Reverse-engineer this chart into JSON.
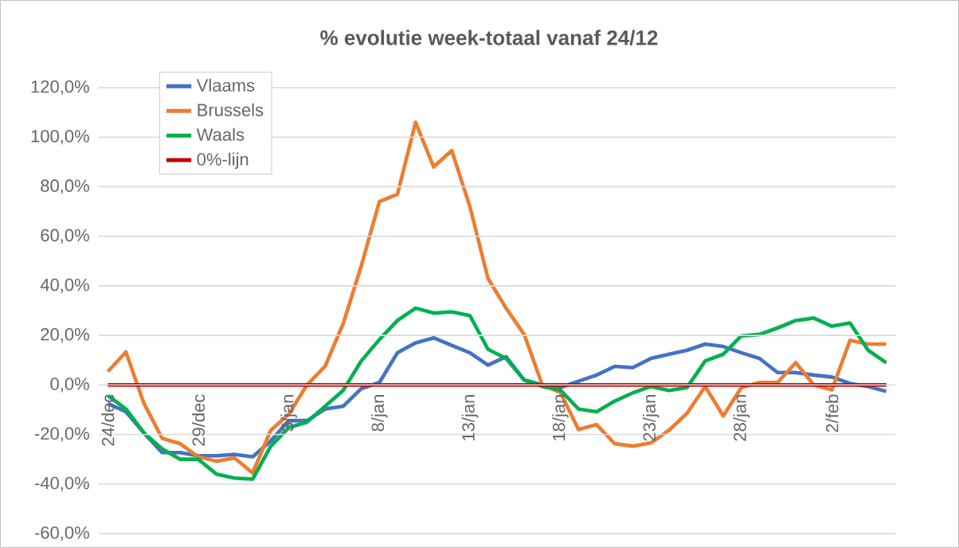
{
  "chart_data": {
    "type": "line",
    "title": "% evolutie week-totaal  vanaf 24/12",
    "categories": [
      "24/dec",
      null,
      null,
      null,
      null,
      "29/dec",
      null,
      null,
      null,
      null,
      "3/jan",
      null,
      null,
      null,
      null,
      "8/jan",
      null,
      null,
      null,
      null,
      "13/jan",
      null,
      null,
      null,
      null,
      "18/jan",
      null,
      null,
      null,
      null,
      "23/jan",
      null,
      null,
      null,
      null,
      "28/jan",
      null,
      null,
      null,
      null,
      "2/feb",
      null,
      null,
      null
    ],
    "series": [
      {
        "name": "Vlaams",
        "color": "#4472c4",
        "values": [
          -7.5,
          -10.8,
          -19.4,
          -27.3,
          -27.3,
          -28.6,
          -28.6,
          -28,
          -29,
          -22.6,
          -14.4,
          -14.4,
          -9.7,
          -8.6,
          -1.5,
          1,
          13,
          17,
          19,
          16,
          13,
          8,
          11.4,
          2,
          0,
          -1,
          1.5,
          4,
          7.5,
          7,
          10.7,
          12.4,
          14,
          16.5,
          15.5,
          13,
          10.7,
          5,
          5,
          4,
          3.2,
          0.6,
          -0.6,
          -2.6
        ]
      },
      {
        "name": "Brussels",
        "color": "#ed7d31",
        "values": [
          5.4,
          13.3,
          -7.5,
          -21.5,
          -23.7,
          -29,
          -30.8,
          -29.5,
          -35.5,
          -18.3,
          -11.8,
          0,
          7.5,
          24.7,
          48,
          74,
          77,
          106,
          88,
          94.6,
          72,
          43,
          31,
          20.4,
          0,
          -3,
          -18,
          -16,
          -23.7,
          -24.7,
          -23.4,
          -18.3,
          -11.4,
          -0.6,
          -12.5,
          -1,
          1,
          1,
          9,
          0,
          -2,
          18,
          16.5,
          16.5
        ]
      },
      {
        "name": "Waals",
        "color": "#00b050",
        "values": [
          -4.3,
          -9.7,
          -19.4,
          -25.8,
          -30,
          -30,
          -36,
          -37.6,
          -38,
          -24.7,
          -17.2,
          -15,
          -8.6,
          -2.2,
          9.7,
          18.3,
          26,
          31,
          29,
          29.5,
          28,
          14.4,
          10.7,
          2,
          -0.6,
          -2,
          -9.7,
          -10.8,
          -6.5,
          -3.2,
          -0.6,
          -2.2,
          -1,
          9.7,
          12.4,
          19.8,
          20.4,
          23,
          26,
          27,
          23.7,
          25,
          14,
          9
        ]
      },
      {
        "name": "0%-lijn",
        "color": "#c00000",
        "values": [
          0,
          0,
          0,
          0,
          0,
          0,
          0,
          0,
          0,
          0,
          0,
          0,
          0,
          0,
          0,
          0,
          0,
          0,
          0,
          0,
          0,
          0,
          0,
          0,
          0,
          0,
          0,
          0,
          0,
          0,
          0,
          0,
          0,
          0,
          0,
          0,
          0,
          0,
          0,
          0,
          0,
          0,
          0,
          0
        ]
      }
    ],
    "ylim": [
      -60,
      120
    ],
    "yticks": [
      {
        "value": -60,
        "label": "-60,0%"
      },
      {
        "value": -40,
        "label": "-40,0%"
      },
      {
        "value": -20,
        "label": "-20,0%"
      },
      {
        "value": 0,
        "label": "0,0%"
      },
      {
        "value": 20,
        "label": "20,0%"
      },
      {
        "value": 40,
        "label": "40,0%"
      },
      {
        "value": 60,
        "label": "60,0%"
      },
      {
        "value": 80,
        "label": "80,0%"
      },
      {
        "value": 100,
        "label": "100,0%"
      },
      {
        "value": 120,
        "label": "120,0%"
      }
    ],
    "grid": "y",
    "legend": "top left",
    "marker": "none",
    "line_style": "solid"
  }
}
